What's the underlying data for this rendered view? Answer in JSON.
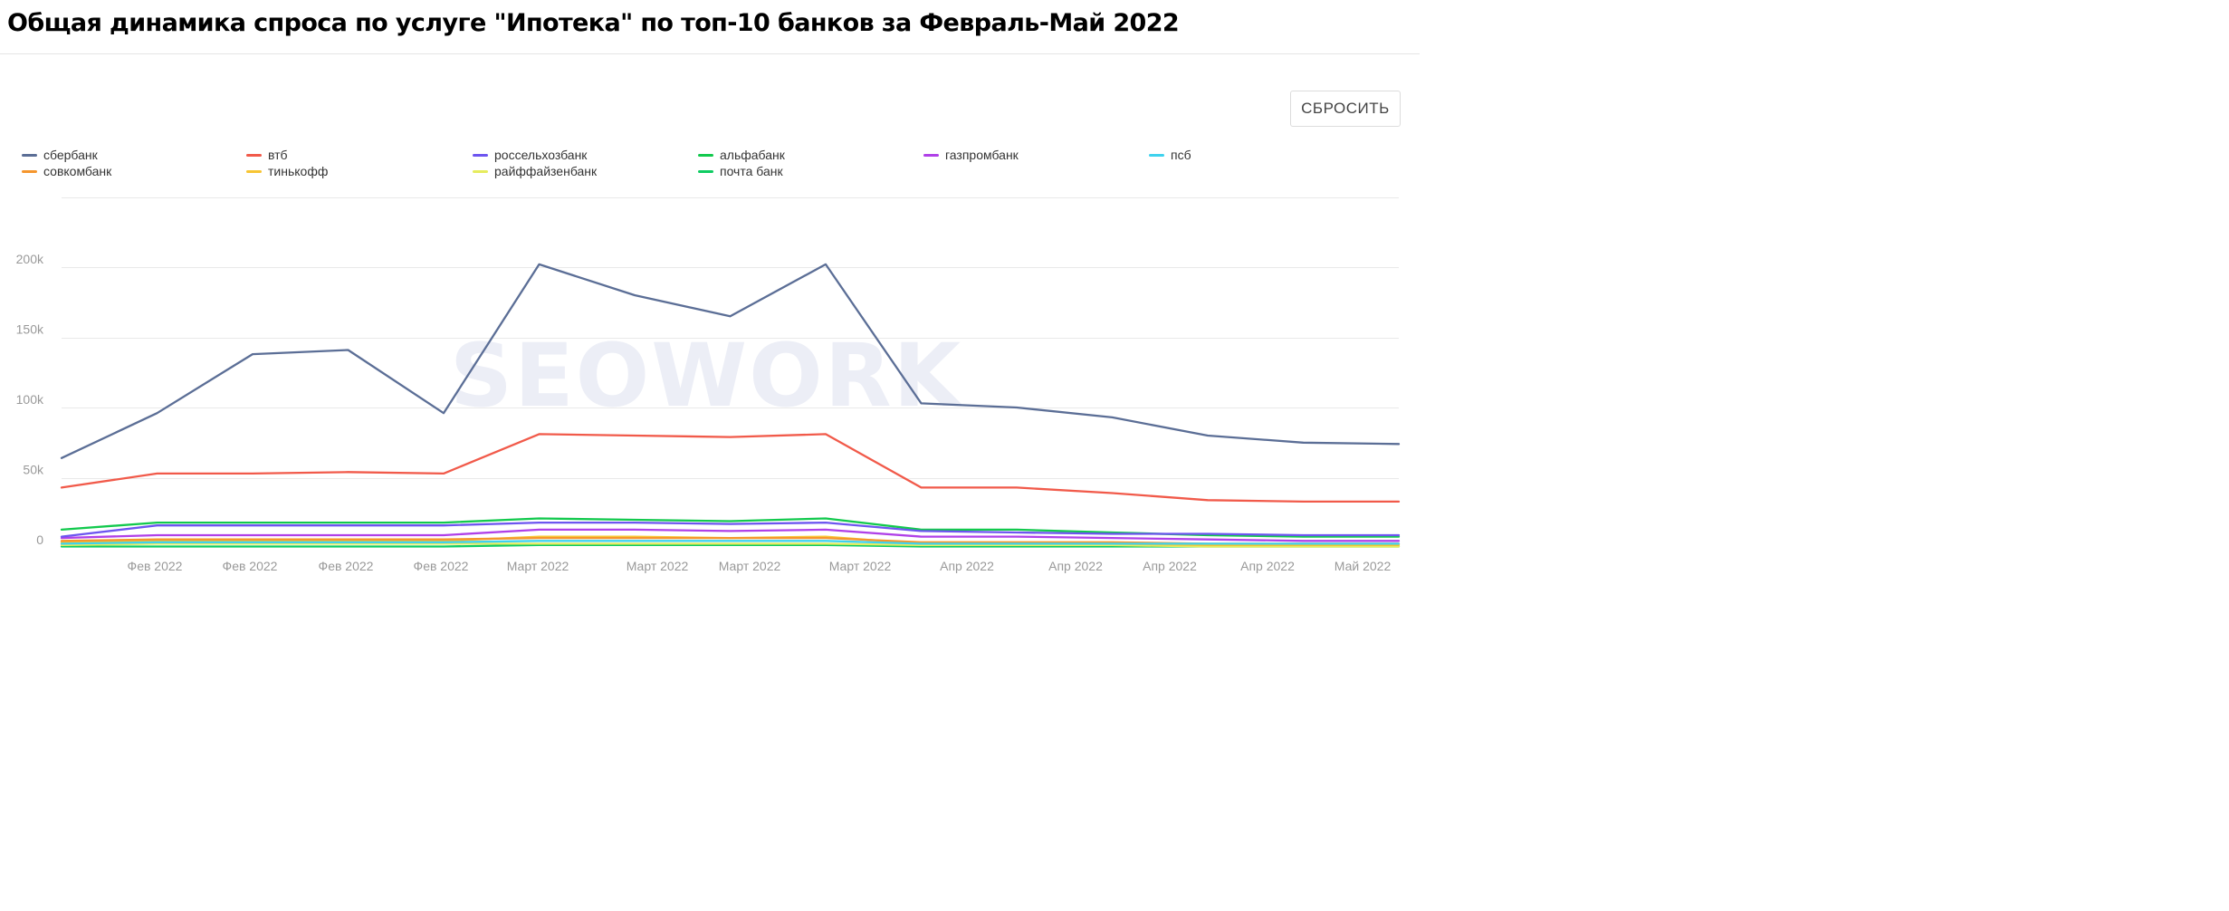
{
  "page": {
    "title": "Общая динамика спроса по услуге \"Ипотека\" по топ-10 банков за Февраль-Май 2022",
    "reset_label": "СБРОСИТЬ",
    "watermark": "SEOWORK"
  },
  "chart_data": {
    "type": "line",
    "title": "Общая динамика спроса по услуге \"Ипотека\" по топ-10 банков за Февраль-Май 2022",
    "xlabel": "",
    "ylabel": "",
    "ylim": [
      0,
      250000
    ],
    "yticks": [
      0,
      50000,
      100000,
      150000,
      200000
    ],
    "ytick_labels": [
      "0",
      "50k",
      "100k",
      "150k",
      "200k"
    ],
    "x": [
      "Фев 2022",
      "Фев 2022",
      "Фев 2022",
      "Фев 2022",
      "Март 2022",
      "Март 2022",
      "Март 2022",
      "Март 2022",
      "Апр 2022",
      "Апр 2022",
      "Апр 2022",
      "Апр 2022",
      "Май 2022",
      "Май 2022",
      "Май 2022"
    ],
    "grid": true,
    "legend_position": "top",
    "series": [
      {
        "name": "сбербанк",
        "color": "#5b6e96",
        "values": [
          64000,
          96000,
          138000,
          141000,
          96000,
          202000,
          180000,
          165000,
          202000,
          103000,
          100000,
          93000,
          80000,
          75000,
          74000
        ]
      },
      {
        "name": "втб",
        "color": "#f15a4a",
        "values": [
          43000,
          53000,
          53000,
          54000,
          53000,
          81000,
          80000,
          79000,
          81000,
          43000,
          43000,
          39000,
          34000,
          33000,
          33000
        ]
      },
      {
        "name": "россельхозбанк",
        "color": "#6d55f0",
        "values": [
          8000,
          16000,
          16000,
          16000,
          16000,
          18000,
          18000,
          17000,
          18000,
          12000,
          11000,
          10000,
          10000,
          9000,
          9000
        ]
      },
      {
        "name": "альфабанк",
        "color": "#12c94d",
        "values": [
          13000,
          18000,
          18000,
          18000,
          18000,
          21000,
          20000,
          19000,
          21000,
          13000,
          13000,
          11000,
          9000,
          8000,
          8000
        ]
      },
      {
        "name": "газпромбанк",
        "color": "#b040e8",
        "values": [
          7000,
          9000,
          9000,
          9000,
          9000,
          13000,
          13000,
          12000,
          13000,
          8000,
          8000,
          7000,
          6000,
          5000,
          5000
        ]
      },
      {
        "name": "псб",
        "color": "#3fd2ee",
        "values": [
          3000,
          4000,
          4000,
          4000,
          4000,
          5000,
          5000,
          5000,
          5000,
          3000,
          3000,
          3000,
          3000,
          3000,
          3000
        ]
      },
      {
        "name": "совкомбанк",
        "color": "#f5962d",
        "values": [
          5000,
          6000,
          6000,
          6000,
          6000,
          7000,
          7000,
          7000,
          7000,
          4000,
          4000,
          4000,
          3000,
          3000,
          3000
        ]
      },
      {
        "name": "тинькофф",
        "color": "#f7c533",
        "values": [
          4000,
          5000,
          5000,
          5000,
          5000,
          8000,
          8000,
          7000,
          8000,
          3000,
          3000,
          3000,
          2000,
          2000,
          2000
        ]
      },
      {
        "name": "райффайзенбанк",
        "color": "#e6ec5e",
        "values": [
          2000,
          3000,
          3000,
          3000,
          3000,
          3000,
          3000,
          3000,
          3000,
          2000,
          2000,
          2000,
          1000,
          1000,
          1000
        ]
      },
      {
        "name": "почта банк",
        "color": "#0fcc62",
        "values": [
          1000,
          1000,
          1000,
          1000,
          1000,
          2000,
          2000,
          2000,
          2000,
          1000,
          1000,
          1000,
          1000,
          1000,
          1000
        ]
      }
    ]
  }
}
